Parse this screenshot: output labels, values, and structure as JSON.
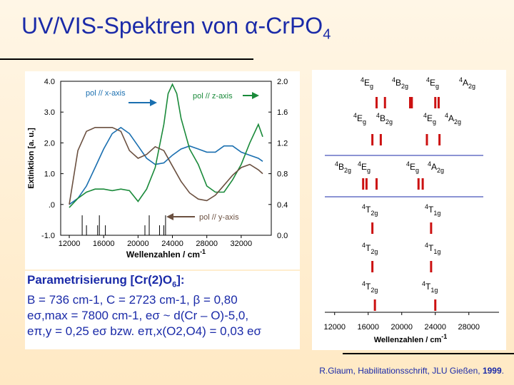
{
  "title": {
    "main": "UV/VIS-Spektren von ",
    "symbol": "α",
    "formula": "-CrPO",
    "sub": "4"
  },
  "colors": {
    "title": "#1a2aa8",
    "x_series": "#1a6fb0",
    "z_series": "#1a8a3a",
    "y_series": "#6b5040",
    "bars": "#cc1111"
  },
  "chart_data": [
    {
      "type": "line",
      "xlabel": "Wellenzahlen / cm",
      "xlabel_sup": "-1",
      "ylabel": "Extinktion [a. u.]",
      "xlim": [
        11000,
        35500
      ],
      "x_ticks": [
        "12000",
        "16000",
        "20000",
        "24000",
        "28000",
        "32000"
      ],
      "y_left_ticks": [
        "4.0",
        "3.0",
        "2.0",
        "1.0",
        ".0",
        "-1.0"
      ],
      "y_right_ticks": [
        "2.0",
        "1.6",
        "1.2",
        "0.8",
        "0.4",
        "0.0"
      ],
      "ylim_left": [
        -1.0,
        4.0
      ],
      "ylim_right": [
        0.0,
        2.0
      ],
      "annotations": {
        "x": "pol // x-axis",
        "z": "pol // z-axis",
        "y": "pol // y-axis"
      },
      "series": [
        {
          "key": "x",
          "axis": "left",
          "x": [
            12000,
            13000,
            14000,
            15000,
            16000,
            17000,
            18000,
            19000,
            20000,
            21000,
            22000,
            23000,
            24000,
            25000,
            26000,
            27000,
            28000,
            29000,
            30000,
            31000,
            32000,
            33000,
            34000,
            34500
          ],
          "y": [
            0.0,
            0.2,
            0.6,
            1.2,
            1.8,
            2.3,
            2.5,
            2.3,
            1.9,
            1.5,
            1.3,
            1.35,
            1.6,
            1.8,
            1.9,
            1.8,
            1.7,
            1.7,
            1.9,
            1.9,
            1.7,
            1.6,
            1.5,
            1.4
          ]
        },
        {
          "key": "z",
          "axis": "left",
          "x": [
            12000,
            13000,
            14000,
            15000,
            16000,
            17000,
            18000,
            19000,
            20000,
            21000,
            22000,
            23000,
            23500,
            24000,
            24500,
            25000,
            26000,
            27000,
            28000,
            29000,
            30000,
            31000,
            32000,
            33000,
            34000,
            34500
          ],
          "y": [
            -0.1,
            0.2,
            0.4,
            0.5,
            0.5,
            0.45,
            0.5,
            0.45,
            0.1,
            0.5,
            1.2,
            2.6,
            3.6,
            3.9,
            3.6,
            2.8,
            1.8,
            1.3,
            0.6,
            0.4,
            0.4,
            0.8,
            1.3,
            2.0,
            2.6,
            2.2
          ]
        },
        {
          "key": "y",
          "axis": "right",
          "x": [
            12000,
            13000,
            14000,
            15000,
            16000,
            17000,
            18000,
            19000,
            20000,
            21000,
            22000,
            23000,
            24000,
            25000,
            26000,
            27000,
            28000,
            29000,
            30000,
            31000,
            32000,
            33000,
            34000,
            34500
          ],
          "y": [
            0.4,
            1.1,
            1.35,
            1.4,
            1.4,
            1.4,
            1.35,
            1.1,
            1.0,
            1.05,
            1.15,
            1.1,
            0.9,
            0.7,
            0.55,
            0.47,
            0.45,
            0.52,
            0.65,
            0.78,
            0.88,
            0.92,
            0.85,
            0.8
          ]
        }
      ]
    },
    {
      "type": "bar",
      "xlabel": "Wellenzahlen / cm",
      "xlabel_sup": "-1",
      "xlim": [
        11000,
        31000
      ],
      "x_ticks": [
        "12000",
        "16000",
        "20000",
        "24000",
        "28000"
      ],
      "levels": [
        {
          "row": "a",
          "labels": [
            [
              "4",
              "E",
              "g"
            ],
            [
              "4",
              "B",
              "2g"
            ],
            [
              "4",
              "E",
              "g"
            ],
            [
              "4",
              "A",
              "2g"
            ]
          ],
          "bars": [
            17000,
            18000,
            21000,
            21200,
            24000,
            24400
          ]
        },
        {
          "row": "b",
          "labels": [
            [
              "4",
              "E",
              "g"
            ],
            [
              "4",
              "B",
              "2g"
            ],
            [
              "4",
              "E",
              "g"
            ],
            [
              "4",
              "A",
              "2g"
            ]
          ],
          "bars": [
            16500,
            17500,
            23000,
            24500
          ]
        },
        {
          "row": "c",
          "labels": [
            [
              "4",
              "B",
              "2g"
            ],
            [
              "4",
              "E",
              "g"
            ],
            [
              "4",
              "E",
              "g"
            ],
            [
              "4",
              "A",
              "2g"
            ]
          ],
          "bars": [
            15400,
            15800,
            17000,
            22000,
            22500
          ]
        },
        {
          "row": "d",
          "labels": [
            [
              "4",
              "T",
              "2g"
            ],
            [
              "4",
              "T",
              "1g"
            ]
          ],
          "bars": [
            16500,
            23500
          ]
        },
        {
          "row": "e",
          "labels": [
            [
              "4",
              "T",
              "2g"
            ],
            [
              "4",
              "T",
              "1g"
            ]
          ],
          "bars": [
            16500,
            23500
          ]
        },
        {
          "row": "f",
          "labels": [
            [
              "4",
              "T",
              "2g"
            ],
            [
              "4",
              "T",
              "1g"
            ]
          ],
          "bars": [
            16800,
            24000
          ]
        }
      ]
    }
  ],
  "params": {
    "heading": "Parametrisierung [Cr(2)O",
    "heading_sub": "6",
    "heading_end": "]:",
    "line1": "B = 736 cm-1, C = 2723 cm-1, β = 0,80",
    "line2": "eσ,max = 7800 cm-1, eσ ~ d(Cr – O)-5,0,",
    "line3": "eπ,y = 0,25 eσ bzw. eπ,x(O2,O4) = 0,03 eσ"
  },
  "citation": {
    "text": "R.Glaum, Habilitationsschrift, JLU Gießen, ",
    "year": "1999",
    "end": "."
  }
}
